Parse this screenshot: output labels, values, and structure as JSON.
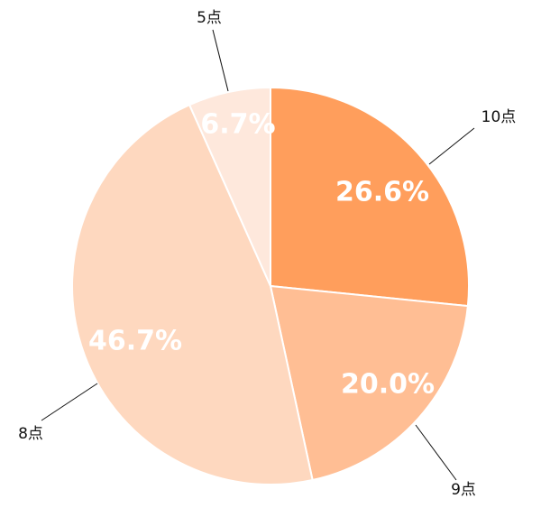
{
  "chart_data": {
    "type": "pie",
    "title": "",
    "start": "12 o'clock, clockwise",
    "slices": [
      {
        "category": "10点",
        "value": 26.6,
        "label": "26.6%",
        "color": "#ff9e5c",
        "label_color": "#ffffff"
      },
      {
        "category": "9点",
        "value": 20.0,
        "label": "20.0%",
        "color": "#ffbe94",
        "label_color": "#ffffff"
      },
      {
        "category": "8点",
        "value": 46.7,
        "label": "46.7%",
        "color": "#fed8bf",
        "label_color": "#ffffff"
      },
      {
        "category": "5点",
        "value": 6.7,
        "label": "6.7%",
        "color": "#fee8dc",
        "label_color": "#fbd3bb"
      }
    ]
  }
}
